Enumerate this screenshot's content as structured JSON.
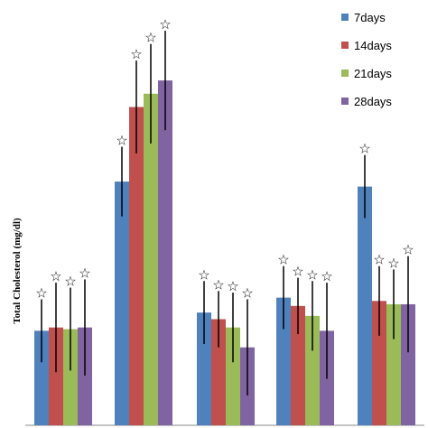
{
  "chart_data": {
    "type": "bar",
    "categories": [
      "",
      "",
      "",
      "",
      ""
    ],
    "ylabel": "Total Cholesterol (mg/dl)",
    "xlabel": "",
    "ylim": [
      0,
      100
    ],
    "axis_ticks_shown": false,
    "grid": false,
    "legend_position": "top-right",
    "significance_marker": "☆",
    "series": [
      {
        "name": "7days",
        "color": "#4F81BD",
        "values": [
          28.5,
          73.5,
          34.0,
          38.5,
          72.0
        ],
        "errors": [
          9.5,
          10.5,
          9.5,
          9.5,
          9.5
        ]
      },
      {
        "name": "14days",
        "color": "#C0504D",
        "values": [
          29.5,
          96.0,
          32.0,
          36.0,
          37.5
        ],
        "errors": [
          13.5,
          14.0,
          8.5,
          8.5,
          10.5
        ]
      },
      {
        "name": "21days",
        "color": "#9BBB59",
        "values": [
          29.0,
          100.0,
          29.5,
          33.0,
          36.5
        ],
        "errors": [
          12.5,
          15.0,
          10.5,
          10.5,
          10.5
        ]
      },
      {
        "name": "28days",
        "color": "#8064A2",
        "values": [
          29.5,
          104.0,
          23.5,
          28.5,
          36.5
        ],
        "errors": [
          14.5,
          15.0,
          14.5,
          14.5,
          14.5
        ]
      }
    ]
  }
}
